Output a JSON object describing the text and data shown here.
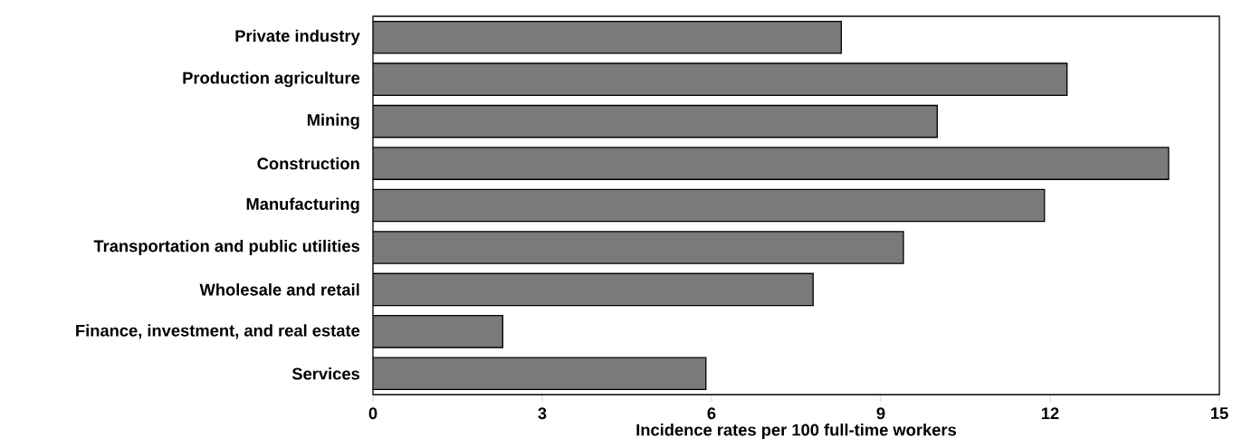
{
  "chart_data": {
    "type": "bar",
    "orientation": "horizontal",
    "xlabel": "Incidence rates per 100 full-time workers",
    "categories": [
      "Private industry",
      "Production agriculture",
      "Mining",
      "Construction",
      "Manufacturing",
      "Transportation and public utilities",
      "Wholesale and retail",
      "Finance, investment, and real estate",
      "Services"
    ],
    "values": [
      8.3,
      12.3,
      10.0,
      14.1,
      11.9,
      9.4,
      7.8,
      2.3,
      5.9
    ],
    "color": "#7a7a7a",
    "xlim": [
      0,
      15
    ],
    "xticks": [
      0,
      3,
      6,
      9,
      12,
      15
    ],
    "grid": false
  }
}
